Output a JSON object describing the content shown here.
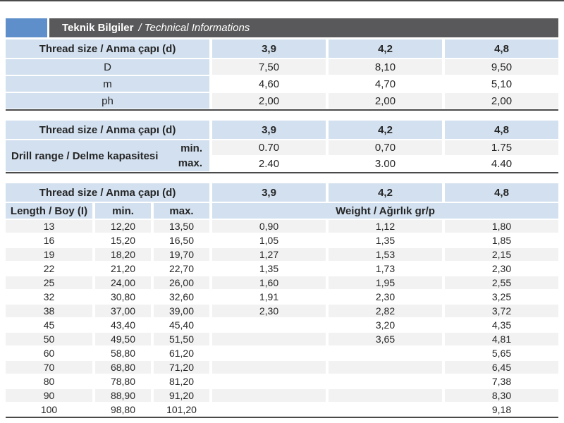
{
  "colors": {
    "accent_blue": "#5f8fca",
    "bar_gray": "#59595b",
    "cell_blue": "#d2e0ef",
    "alt_gray": "#f2f2f2",
    "line_dark": "#4a4a4b"
  },
  "header": {
    "title_bold": "Teknik Bilgiler",
    "title_italic": "/ Technical Informations"
  },
  "table1": {
    "header_label": "Thread size / Anma çapı (d)",
    "sizes": [
      "3,9",
      "4,2",
      "4,8"
    ],
    "rows": [
      {
        "label": "D",
        "values": [
          "7,50",
          "8,10",
          "9,50"
        ]
      },
      {
        "label": "m",
        "values": [
          "4,60",
          "4,70",
          "5,10"
        ]
      },
      {
        "label": "ph",
        "values": [
          "2,00",
          "2,00",
          "2,00"
        ]
      }
    ]
  },
  "table2": {
    "header_label": "Thread size / Anma çapı (d)",
    "sizes": [
      "3,9",
      "4,2",
      "4,8"
    ],
    "row_label": "Drill range / Delme kapasitesi",
    "min_label": "min.",
    "max_label": "max.",
    "min_values": [
      "0.70",
      "0,70",
      "1.75"
    ],
    "max_values": [
      "2.40",
      "3.00",
      "4.40"
    ]
  },
  "table3": {
    "header_label": "Thread size / Anma çapı (d)",
    "sizes": [
      "3,9",
      "4,2",
      "4,8"
    ],
    "length_label": "Length / Boy (I)",
    "min_label": "min.",
    "max_label": "max.",
    "weight_label": "Weight / Ağırlık gr/p",
    "rows": [
      {
        "length": "13",
        "min": "12,20",
        "max": "13,50",
        "weights": [
          "0,90",
          "1,12",
          "1,80"
        ]
      },
      {
        "length": "16",
        "min": "15,20",
        "max": "16,50",
        "weights": [
          "1,05",
          "1,35",
          "1,85"
        ]
      },
      {
        "length": "19",
        "min": "18,20",
        "max": "19,70",
        "weights": [
          "1,27",
          "1,53",
          "2,15"
        ]
      },
      {
        "length": "22",
        "min": "21,20",
        "max": "22,70",
        "weights": [
          "1,35",
          "1,73",
          "2,30"
        ]
      },
      {
        "length": "25",
        "min": "24,00",
        "max": "26,00",
        "weights": [
          "1,60",
          "1,95",
          "2,55"
        ]
      },
      {
        "length": "32",
        "min": "30,80",
        "max": "32,60",
        "weights": [
          "1,91",
          "2,30",
          "3,25"
        ]
      },
      {
        "length": "38",
        "min": "37,00",
        "max": "39,00",
        "weights": [
          "2,30",
          "2,82",
          "3,72"
        ]
      },
      {
        "length": "45",
        "min": "43,40",
        "max": "45,40",
        "weights": [
          "",
          "3,20",
          "4,35"
        ]
      },
      {
        "length": "50",
        "min": "49,50",
        "max": "51,50",
        "weights": [
          "",
          "3,65",
          "4,81"
        ]
      },
      {
        "length": "60",
        "min": "58,80",
        "max": "61,20",
        "weights": [
          "",
          "",
          "5,65"
        ]
      },
      {
        "length": "70",
        "min": "68,80",
        "max": "71,20",
        "weights": [
          "",
          "",
          "6,45"
        ]
      },
      {
        "length": "80",
        "min": "78,80",
        "max": "81,20",
        "weights": [
          "",
          "",
          "7,38"
        ]
      },
      {
        "length": "90",
        "min": "88,90",
        "max": "91,20",
        "weights": [
          "",
          "",
          "8,30"
        ]
      },
      {
        "length": "100",
        "min": "98,80",
        "max": "101,20",
        "weights": [
          "",
          "",
          "9,18"
        ]
      }
    ]
  }
}
